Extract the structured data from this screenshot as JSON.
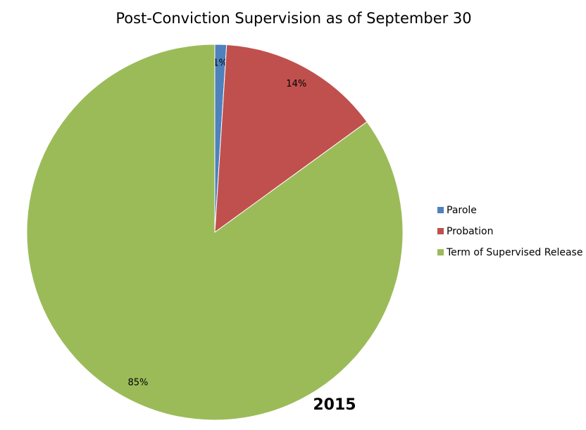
{
  "chart_data": {
    "type": "pie",
    "title": "Post-Conviction Supervision as of September 30",
    "categories": [
      "Parole",
      "Probation",
      "Term of Supervised Release"
    ],
    "values": [
      1,
      14,
      85
    ],
    "value_labels": [
      "1%",
      "14%",
      "85%"
    ],
    "colors": [
      "#4f81bd",
      "#c0504d",
      "#9bbb59"
    ],
    "legend": "right",
    "annotation": "2015"
  }
}
